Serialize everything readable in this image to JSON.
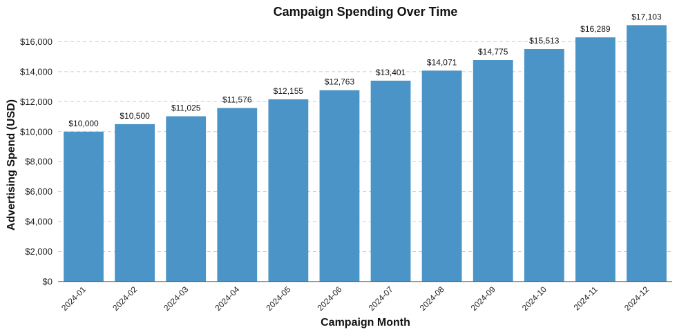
{
  "chart_data": {
    "type": "bar",
    "title": "Campaign Spending Over Time",
    "xlabel": "Campaign Month",
    "ylabel": "Advertising Spend (USD)",
    "categories": [
      "2024-01",
      "2024-02",
      "2024-03",
      "2024-04",
      "2024-05",
      "2024-06",
      "2024-07",
      "2024-08",
      "2024-09",
      "2024-10",
      "2024-11",
      "2024-12"
    ],
    "values": [
      10000,
      10500,
      11025,
      11576,
      12155,
      12763,
      13401,
      14071,
      14775,
      15513,
      16289,
      17103
    ],
    "data_labels": [
      "$10,000",
      "$10,500",
      "$11,025",
      "$11,576",
      "$12,155",
      "$12,763",
      "$13,401",
      "$14,071",
      "$14,775",
      "$15,513",
      "$16,289",
      "$17,103"
    ],
    "ylim": [
      0,
      17400
    ],
    "yticks": [
      0,
      2000,
      4000,
      6000,
      8000,
      10000,
      12000,
      14000,
      16000
    ],
    "ytick_labels": [
      "$0",
      "$2,000",
      "$4,000",
      "$6,000",
      "$8,000",
      "$10,000",
      "$12,000",
      "$14,000",
      "$16,000"
    ],
    "grid": "horizontal dashed",
    "bar_color": "#4a94c7"
  }
}
